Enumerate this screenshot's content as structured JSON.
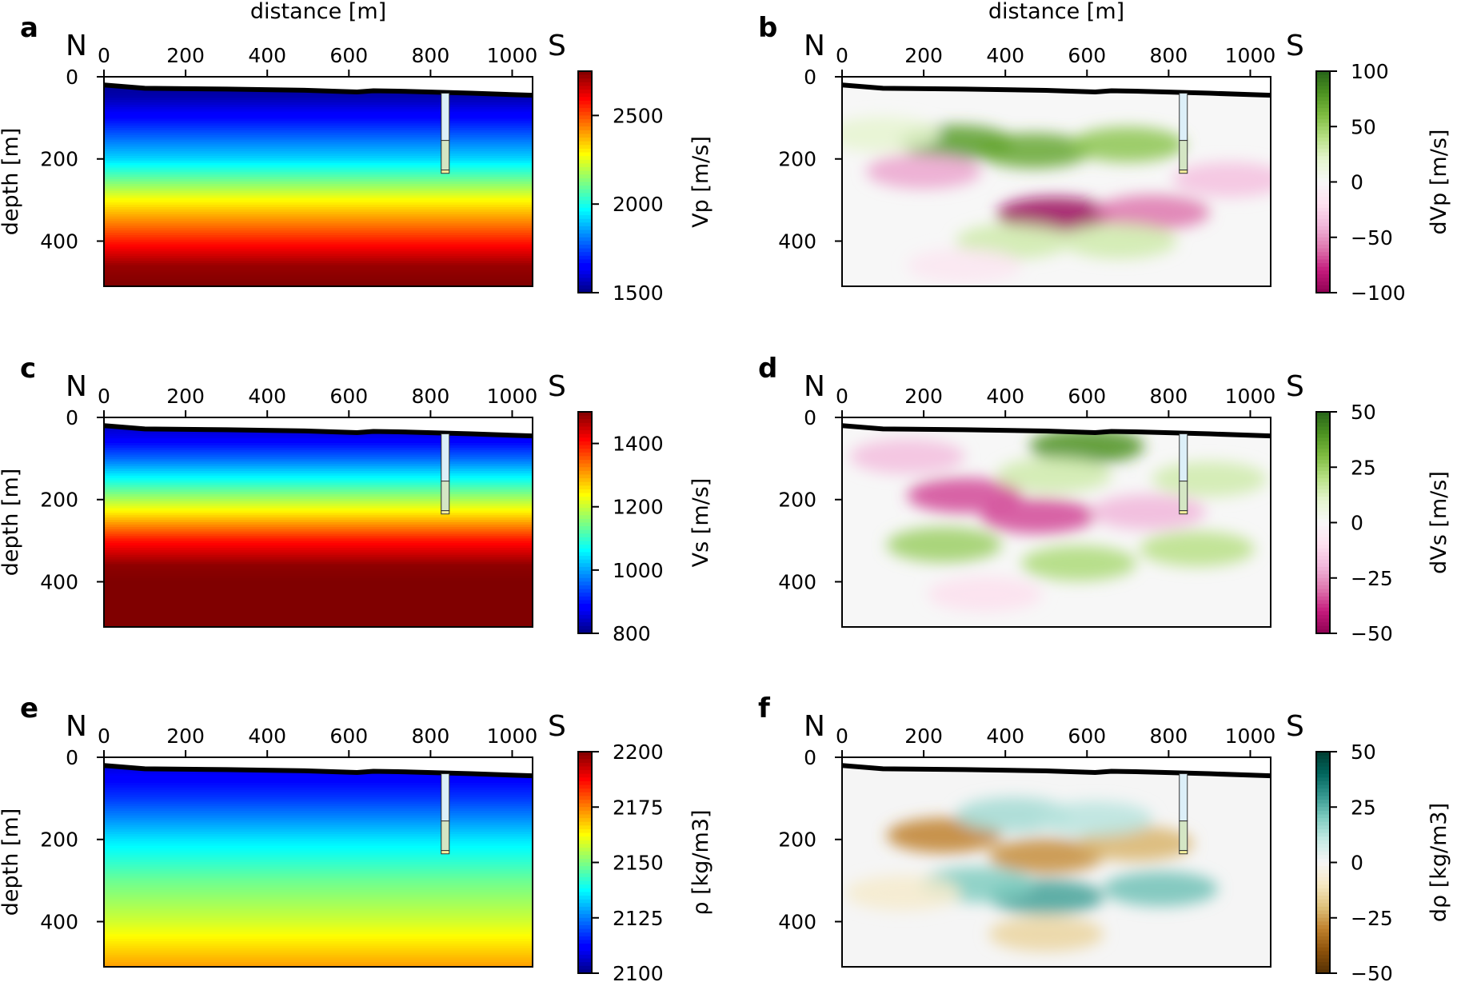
{
  "figure": {
    "x_axis_label": "distance [m]",
    "y_axis_label": "depth [m]",
    "north_label": "N",
    "south_label": "S",
    "x_ticks": [
      0,
      200,
      400,
      600,
      800,
      1000
    ],
    "y_ticks": [
      0,
      200,
      400
    ],
    "x_range": [
      0,
      1050
    ],
    "y_range": [
      0,
      510
    ],
    "topography": {
      "x": [
        0,
        100,
        300,
        500,
        620,
        660,
        720,
        900,
        1050
      ],
      "depth": [
        20,
        28,
        30,
        33,
        37,
        34,
        35,
        40,
        45
      ]
    },
    "borehole": {
      "x": 836,
      "top_depth": 40,
      "bottom_depth": 235,
      "segment_depth": 155
    }
  },
  "chart_data": [
    {
      "panel": "a",
      "type": "heatmap",
      "colorbar_label": "Vp [m/s]",
      "colormap": "jet",
      "clim": [
        1500,
        2750
      ],
      "colorbar_ticks": [
        1500,
        2000,
        2500
      ],
      "colorbar_ticks_text": [
        "1500",
        "2000",
        "2500"
      ],
      "depth_profile": {
        "depth": [
          0,
          50,
          100,
          200,
          300,
          400,
          460,
          510
        ],
        "value": [
          1500,
          1550,
          1660,
          1920,
          2280,
          2560,
          2720,
          2750
        ]
      },
      "anomalies": []
    },
    {
      "panel": "b",
      "type": "heatmap",
      "colorbar_label": "dVp [m/s]",
      "colormap": "PiYG",
      "clim": [
        -100,
        100
      ],
      "colorbar_ticks": [
        -100,
        -50,
        0,
        50,
        100
      ],
      "colorbar_ticks_text": [
        "−100",
        "−50",
        "0",
        "50",
        "100"
      ],
      "depth_profile": null,
      "anomalies": [
        {
          "x": 280,
          "depth": 160,
          "value": 75
        },
        {
          "x": 470,
          "depth": 180,
          "value": 70
        },
        {
          "x": 700,
          "depth": 165,
          "value": 55
        },
        {
          "x": 200,
          "depth": 230,
          "value": -45
        },
        {
          "x": 520,
          "depth": 335,
          "value": -95
        },
        {
          "x": 760,
          "depth": 330,
          "value": -60
        },
        {
          "x": 950,
          "depth": 250,
          "value": -35
        },
        {
          "x": 420,
          "depth": 400,
          "value": 30
        },
        {
          "x": 680,
          "depth": 400,
          "value": 30
        },
        {
          "x": 100,
          "depth": 140,
          "value": 20
        },
        {
          "x": 300,
          "depth": 460,
          "value": -15
        }
      ]
    },
    {
      "panel": "c",
      "type": "heatmap",
      "colorbar_label": "Vs [m/s]",
      "colormap": "jet",
      "clim": [
        800,
        1500
      ],
      "colorbar_ticks": [
        800,
        1000,
        1200,
        1400
      ],
      "colorbar_ticks_text": [
        "800",
        "1000",
        "1200",
        "1400"
      ],
      "depth_profile": {
        "depth": [
          0,
          50,
          100,
          200,
          300,
          360,
          400,
          510
        ],
        "value": [
          820,
          870,
          960,
          1180,
          1400,
          1490,
          1500,
          1500
        ]
      },
      "anomalies": []
    },
    {
      "panel": "d",
      "type": "heatmap",
      "colorbar_label": "dVs [m/s]",
      "colormap": "PiYG",
      "clim": [
        -50,
        50
      ],
      "colorbar_ticks": [
        -50,
        -25,
        0,
        25,
        50
      ],
      "colorbar_ticks_text": [
        "−50",
        "−25",
        "0",
        "25",
        "50"
      ],
      "depth_profile": null,
      "anomalies": [
        {
          "x": 600,
          "depth": 70,
          "value": 40
        },
        {
          "x": 300,
          "depth": 190,
          "value": -35
        },
        {
          "x": 480,
          "depth": 240,
          "value": -35
        },
        {
          "x": 250,
          "depth": 310,
          "value": 25
        },
        {
          "x": 580,
          "depth": 355,
          "value": 22
        },
        {
          "x": 750,
          "depth": 230,
          "value": -20
        },
        {
          "x": 870,
          "depth": 320,
          "value": 20
        },
        {
          "x": 160,
          "depth": 95,
          "value": -18
        },
        {
          "x": 520,
          "depth": 140,
          "value": 15
        },
        {
          "x": 350,
          "depth": 430,
          "value": -10
        },
        {
          "x": 900,
          "depth": 150,
          "value": 15
        }
      ]
    },
    {
      "panel": "e",
      "type": "heatmap",
      "colorbar_label": "ρ [kg/m3]",
      "colormap": "jet",
      "clim": [
        2100,
        2200
      ],
      "colorbar_ticks": [
        2100,
        2125,
        2150,
        2175,
        2200
      ],
      "colorbar_ticks_text": [
        "2100",
        "2125",
        "2150",
        "2175",
        "2200"
      ],
      "depth_profile": {
        "depth": [
          0,
          100,
          200,
          300,
          400,
          510
        ],
        "value": [
          2105,
          2118,
          2135,
          2148,
          2158,
          2172
        ]
      },
      "anomalies": []
    },
    {
      "panel": "f",
      "type": "heatmap",
      "colorbar_label": "dρ [kg/m3]",
      "colormap": "BrBG",
      "clim": [
        -50,
        50
      ],
      "colorbar_ticks": [
        -50,
        -25,
        0,
        25,
        50
      ],
      "colorbar_ticks_text": [
        "−50",
        "−25",
        "0",
        "25",
        "50"
      ],
      "depth_profile": null,
      "anomalies": [
        {
          "x": 250,
          "depth": 190,
          "value": -30
        },
        {
          "x": 500,
          "depth": 240,
          "value": -28
        },
        {
          "x": 720,
          "depth": 210,
          "value": -22
        },
        {
          "x": 500,
          "depth": 340,
          "value": 28
        },
        {
          "x": 330,
          "depth": 310,
          "value": 20
        },
        {
          "x": 780,
          "depth": 320,
          "value": 22
        },
        {
          "x": 420,
          "depth": 140,
          "value": 15
        },
        {
          "x": 620,
          "depth": 150,
          "value": 12
        },
        {
          "x": 500,
          "depth": 430,
          "value": -15
        },
        {
          "x": 150,
          "depth": 330,
          "value": -8
        }
      ]
    }
  ]
}
